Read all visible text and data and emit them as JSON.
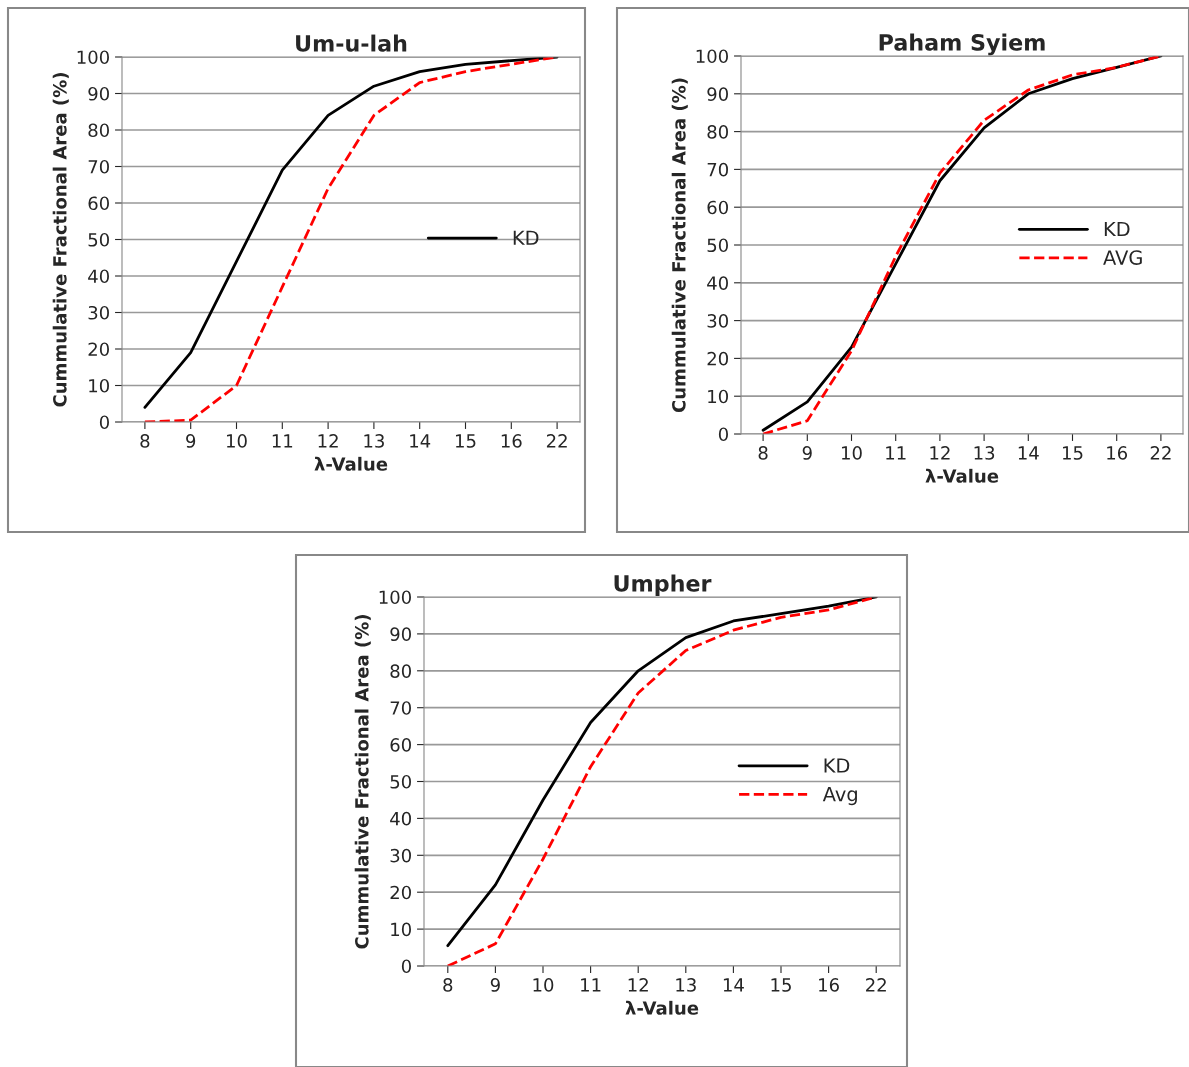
{
  "chart_data": [
    {
      "type": "line",
      "title": "Um-u-lah",
      "xlabel": "λ-Value",
      "ylabel": "Cummulative Fractional Area (%)",
      "categories": [
        "8",
        "9",
        "10",
        "11",
        "12",
        "13",
        "14",
        "15",
        "16",
        "22"
      ],
      "ylim": [
        0,
        100
      ],
      "yticks": [
        0,
        10,
        20,
        30,
        40,
        50,
        60,
        70,
        80,
        90,
        100
      ],
      "grid": "y",
      "legend": "right",
      "series": [
        {
          "name": "KD",
          "color": "#000000",
          "line_style": "solid",
          "values": [
            4,
            19,
            44,
            69,
            84,
            92,
            96,
            98,
            99,
            100
          ]
        },
        {
          "color": "#ff0000",
          "line_style": "dashed",
          "values": [
            0,
            0.5,
            10,
            37,
            64,
            84,
            93,
            96,
            98,
            100
          ]
        }
      ]
    },
    {
      "type": "line",
      "title": "Paham Syiem",
      "xlabel": "λ-Value",
      "ylabel": "Cummulative Fractional Area (%)",
      "categories": [
        "8",
        "9",
        "10",
        "11",
        "12",
        "13",
        "14",
        "15",
        "16",
        "22"
      ],
      "ylim": [
        0,
        100
      ],
      "yticks": [
        0,
        10,
        20,
        30,
        40,
        50,
        60,
        70,
        80,
        90,
        100
      ],
      "grid": "y",
      "legend": "right",
      "series": [
        {
          "name": "KD",
          "color": "#000000",
          "line_style": "solid",
          "values": [
            1,
            8.5,
            23,
            45,
            67,
            81,
            90,
            94,
            97,
            100
          ]
        },
        {
          "name": "AVG",
          "color": "#ff0000",
          "line_style": "dashed",
          "values": [
            0,
            3.5,
            22,
            47,
            69,
            83,
            91,
            95,
            97,
            100
          ]
        }
      ]
    },
    {
      "type": "line",
      "title": "Umpher",
      "xlabel": "λ-Value",
      "ylabel": "Cummulative Fractional Area (%)",
      "categories": [
        "8",
        "9",
        "10",
        "11",
        "12",
        "13",
        "14",
        "15",
        "16",
        "22"
      ],
      "ylim": [
        0,
        100
      ],
      "yticks": [
        0,
        10,
        20,
        30,
        40,
        50,
        60,
        70,
        80,
        90,
        100
      ],
      "grid": "y",
      "legend": "right",
      "series": [
        {
          "name": "KD",
          "color": "#000000",
          "line_style": "solid",
          "values": [
            5.5,
            22,
            45,
            66,
            80,
            89,
            93.5,
            95.5,
            97.5,
            100
          ]
        },
        {
          "name": "Avg",
          "color": "#ff0000",
          "line_style": "dashed",
          "values": [
            0,
            6,
            29,
            54,
            74,
            85.5,
            91,
            94.5,
            96.5,
            100
          ]
        }
      ]
    }
  ]
}
